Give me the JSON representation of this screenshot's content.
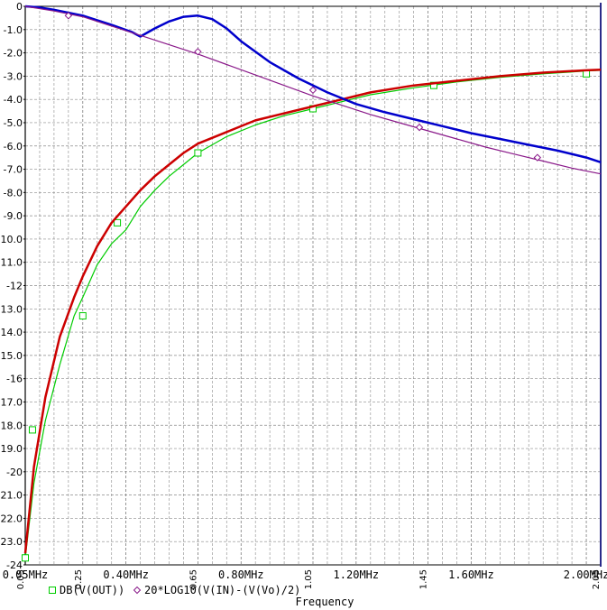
{
  "chart_data": {
    "type": "line",
    "xlabel": "Frequency",
    "ylabel": "",
    "title": "",
    "xlim": [
      0.05,
      2.05
    ],
    "ylim": [
      -24,
      0
    ],
    "x_unit": "MHz",
    "grid": true,
    "x_tick_labels": [
      "0.05MHz",
      "0.40MHz",
      "0.80MHz",
      "1.20MHz",
      "1.60MHz",
      "2.00MHz"
    ],
    "x_tick_values": [
      0.05,
      0.4,
      0.8,
      1.2,
      1.6,
      2.0
    ],
    "x_minor_labels": [
      "0.05",
      "0.25",
      "0.65",
      "1.05",
      "1.45",
      "2.05"
    ],
    "x_minor_values": [
      0.05,
      0.25,
      0.65,
      1.05,
      1.45,
      2.05
    ],
    "y_tick_labels": [
      "0",
      "-1.0",
      "-2.0",
      "-3.0",
      "-4.0",
      "-5.0",
      "-6.0",
      "-7.0",
      "-8.0",
      "-9.0",
      "-10.0",
      "-11.0",
      "-12",
      "-13.0",
      "-14.0",
      "-15.0",
      "-16",
      "-17.0",
      "-18.0",
      "-19.0",
      "-20",
      "-21.0",
      "-22.0",
      "-23.0",
      "-24"
    ],
    "y_tick_values": [
      0,
      -1,
      -2,
      -3,
      -4,
      -5,
      -6,
      -7,
      -8,
      -9,
      -10,
      -11,
      -12,
      -13,
      -14,
      -15,
      -16,
      -17,
      -18,
      -19,
      -20,
      -21,
      -22,
      -23,
      -24
    ],
    "series": [
      {
        "name": "DB(V(OUT))",
        "color": "#00cc00",
        "marker": "square",
        "x": [
          0.05,
          0.08,
          0.12,
          0.17,
          0.22,
          0.25,
          0.3,
          0.35,
          0.4,
          0.45,
          0.5,
          0.55,
          0.6,
          0.65,
          0.75,
          0.85,
          0.95,
          1.05,
          1.15,
          1.25,
          1.4,
          1.55,
          1.7,
          1.85,
          2.0,
          2.05
        ],
        "y": [
          -23.7,
          -20.5,
          -17.8,
          -15.4,
          -13.3,
          -12.5,
          -11.1,
          -10.2,
          -9.6,
          -8.6,
          -7.9,
          -7.3,
          -6.8,
          -6.3,
          -5.6,
          -5.1,
          -4.7,
          -4.4,
          -4.1,
          -3.8,
          -3.5,
          -3.25,
          -3.05,
          -2.9,
          -2.78,
          -2.75
        ],
        "marker_x": [
          0.05,
          0.075,
          0.25,
          0.37,
          0.65,
          1.05,
          1.47,
          2.0
        ],
        "marker_y": [
          -23.7,
          -18.2,
          -13.3,
          -9.3,
          -6.3,
          -4.4,
          -3.4,
          -2.9
        ]
      },
      {
        "name": "",
        "color": "#cc0000",
        "marker": "none",
        "x": [
          0.05,
          0.08,
          0.12,
          0.17,
          0.22,
          0.25,
          0.3,
          0.35,
          0.4,
          0.45,
          0.5,
          0.55,
          0.6,
          0.65,
          0.75,
          0.85,
          0.95,
          1.05,
          1.15,
          1.25,
          1.4,
          1.55,
          1.7,
          1.85,
          2.0,
          2.05
        ],
        "y": [
          -23.5,
          -19.8,
          -16.8,
          -14.2,
          -12.5,
          -11.6,
          -10.3,
          -9.3,
          -8.6,
          -7.9,
          -7.3,
          -6.8,
          -6.3,
          -5.9,
          -5.4,
          -4.9,
          -4.6,
          -4.3,
          -4.0,
          -3.7,
          -3.4,
          -3.2,
          -3.0,
          -2.85,
          -2.75,
          -2.72
        ]
      },
      {
        "name": "",
        "color": "#0000cc",
        "marker": "none",
        "x": [
          0.05,
          0.1,
          0.15,
          0.25,
          0.35,
          0.42,
          0.45,
          0.5,
          0.55,
          0.6,
          0.65,
          0.7,
          0.75,
          0.8,
          0.9,
          1.0,
          1.1,
          1.2,
          1.3,
          1.4,
          1.5,
          1.6,
          1.7,
          1.8,
          1.9,
          2.0,
          2.05
        ],
        "y": [
          0.0,
          -0.05,
          -0.15,
          -0.4,
          -0.8,
          -1.1,
          -1.3,
          -0.95,
          -0.65,
          -0.45,
          -0.4,
          -0.55,
          -0.95,
          -1.5,
          -2.4,
          -3.1,
          -3.7,
          -4.2,
          -4.55,
          -4.85,
          -5.15,
          -5.45,
          -5.7,
          -5.95,
          -6.2,
          -6.5,
          -6.7
        ]
      },
      {
        "name": "20*LOG10(V(IN)-(V(Vo)/2)",
        "color": "#8a1a8a",
        "marker": "diamond",
        "x": [
          0.05,
          0.15,
          0.25,
          0.35,
          0.45,
          0.55,
          0.65,
          0.75,
          0.85,
          0.95,
          1.05,
          1.15,
          1.25,
          1.35,
          1.45,
          1.55,
          1.65,
          1.75,
          1.85,
          1.95,
          2.05
        ],
        "y": [
          0.0,
          -0.2,
          -0.45,
          -0.85,
          -1.25,
          -1.65,
          -2.05,
          -2.5,
          -2.95,
          -3.4,
          -3.85,
          -4.25,
          -4.65,
          -5.0,
          -5.35,
          -5.7,
          -6.05,
          -6.35,
          -6.65,
          -6.95,
          -7.2
        ],
        "marker_x": [
          0.2,
          0.65,
          1.05,
          1.42,
          1.83
        ],
        "marker_y": [
          -0.4,
          -1.95,
          -3.6,
          -5.2,
          -6.5
        ]
      }
    ]
  }
}
